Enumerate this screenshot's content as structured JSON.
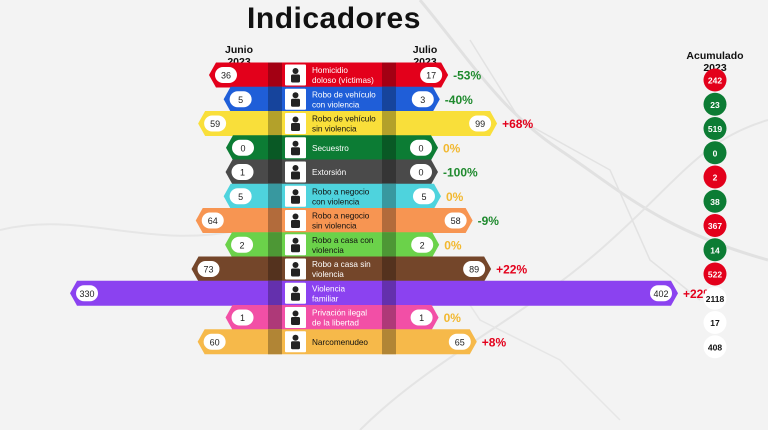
{
  "title": "Indicadores",
  "headers": {
    "left_month": "Junio",
    "left_year": "2023",
    "right_month": "Julio",
    "right_year": "2023",
    "acc_label": "Acumulado",
    "acc_year": "2023"
  },
  "chart_data": {
    "type": "bar",
    "title": "Indicadores",
    "subtype": "mirrored-horizontal-bar",
    "series": [
      {
        "name": "Junio 2023",
        "values": [
          36,
          5,
          59,
          0,
          1,
          5,
          64,
          2,
          73,
          330,
          1,
          60
        ]
      },
      {
        "name": "Julio 2023",
        "values": [
          17,
          3,
          99,
          0,
          0,
          5,
          58,
          2,
          89,
          402,
          1,
          65
        ]
      }
    ],
    "categories": [
      {
        "line1": "Homicidio",
        "line2": "doloso (víctimas)",
        "color": "#e3001b",
        "icon": "running-person-icon"
      },
      {
        "line1": "Robo de vehículo",
        "line2": "con violencia",
        "color": "#1f5ed8",
        "icon": "car-cluster-icon"
      },
      {
        "line1": "Robo de vehículo",
        "line2": "sin violencia",
        "color": "#f9df3a",
        "icon": "car-theft-icon"
      },
      {
        "line1": "Secuestro",
        "line2": "",
        "color": "#0c7c34",
        "icon": "kidnap-icon"
      },
      {
        "line1": "Extorsión",
        "line2": "",
        "color": "#4a4a4a",
        "icon": "money-bag-icon"
      },
      {
        "line1": "Robo a negocio",
        "line2": "con violencia",
        "color": "#4ed3dd",
        "icon": "store-robbery-icon"
      },
      {
        "line1": "Robo a negocio",
        "line2": "sin violencia",
        "color": "#f79552",
        "icon": "store-icon"
      },
      {
        "line1": "Robo a casa con",
        "line2": "violencia",
        "color": "#6bd24a",
        "icon": "door-icon"
      },
      {
        "line1": "Robo a casa sin",
        "line2": "violencia",
        "color": "#74462a",
        "icon": "house-icon"
      },
      {
        "line1": "Violencia",
        "line2": "familiar",
        "color": "#8b42f0",
        "icon": "family-icon"
      },
      {
        "line1": "Privación ilegal",
        "line2": "de la libertad",
        "color": "#f24fa6",
        "icon": "captive-icon"
      },
      {
        "line1": "Narcomenudeo",
        "line2": "",
        "color": "#f6b94a",
        "icon": "drugs-icon"
      }
    ],
    "changes": [
      "-53%",
      "-40%",
      "+68%",
      "0%",
      "-100%",
      "0%",
      "-9%",
      "0%",
      "+22%",
      "+22%",
      "0%",
      "+8%"
    ],
    "change_colors": [
      "#1f8a2e",
      "#1f8a2e",
      "#e3001b",
      "#f2b830",
      "#1f8a2e",
      "#f2b830",
      "#1f8a2e",
      "#f2b830",
      "#e3001b",
      "#e3001b",
      "#f2b830",
      "#e3001b"
    ],
    "accumulated": [
      "242",
      "23",
      "519",
      "0",
      "2",
      "38",
      "367",
      "14",
      "522",
      "2118",
      "17",
      "408"
    ],
    "accumulated_colors": [
      "#e3001b",
      "#0c7c34",
      "#0c7c34",
      "#0c7c34",
      "#e3001b",
      "#0c7c34",
      "#e3001b",
      "#0c7c34",
      "#e3001b",
      "#ffffff",
      "#ffffff",
      "#ffffff"
    ]
  }
}
